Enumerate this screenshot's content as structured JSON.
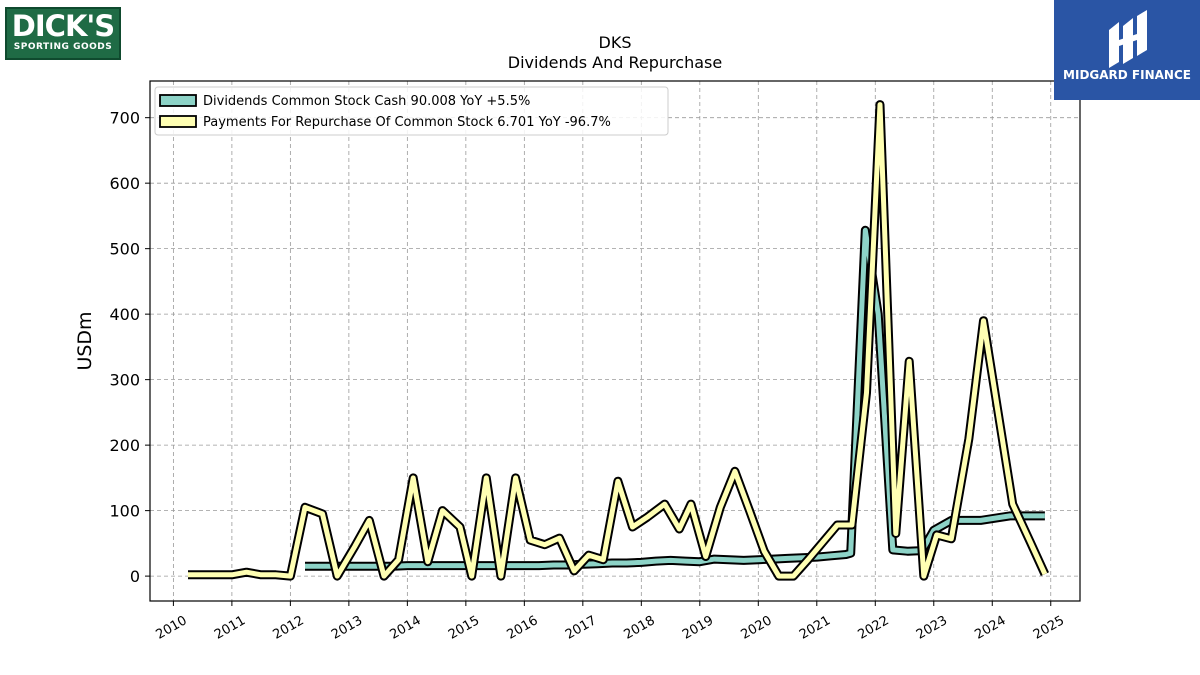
{
  "logos": {
    "left": {
      "line1": "DICK'S",
      "line2": "SPORTING GOODS"
    },
    "right": {
      "name": "MIDGARD FINANCE"
    }
  },
  "chart_data": {
    "type": "line",
    "title": "DKS",
    "subtitle": "Dividends And Repurchase",
    "ylabel": "USDm",
    "xlabel": "",
    "ylim": [
      -38,
      756
    ],
    "xlim": [
      2009.6,
      2025.5
    ],
    "yticks": [
      0,
      100,
      200,
      300,
      400,
      500,
      600,
      700
    ],
    "xticks": [
      2010,
      2011,
      2012,
      2013,
      2014,
      2015,
      2016,
      2017,
      2018,
      2019,
      2020,
      2021,
      2022,
      2023,
      2024,
      2025
    ],
    "grid": true,
    "legend_position": "upper-left",
    "series": [
      {
        "name": "Dividends Common Stock Cash  90.008 YoY +5.5%",
        "color": "#8dd3c7",
        "points": [
          [
            2012.25,
            15
          ],
          [
            2012.5,
            15
          ],
          [
            2012.75,
            15
          ],
          [
            2013.0,
            15
          ],
          [
            2013.25,
            15
          ],
          [
            2013.5,
            15
          ],
          [
            2013.75,
            15
          ],
          [
            2014.0,
            16
          ],
          [
            2014.25,
            16
          ],
          [
            2014.5,
            16
          ],
          [
            2014.75,
            16
          ],
          [
            2015.0,
            16
          ],
          [
            2015.25,
            16
          ],
          [
            2015.5,
            16
          ],
          [
            2015.75,
            16
          ],
          [
            2016.0,
            16
          ],
          [
            2016.25,
            16
          ],
          [
            2016.5,
            17
          ],
          [
            2016.75,
            17
          ],
          [
            2017.0,
            18
          ],
          [
            2017.25,
            19
          ],
          [
            2017.5,
            20
          ],
          [
            2017.75,
            20
          ],
          [
            2018.0,
            21
          ],
          [
            2018.25,
            23
          ],
          [
            2018.5,
            24
          ],
          [
            2018.75,
            23
          ],
          [
            2019.0,
            22
          ],
          [
            2019.25,
            26
          ],
          [
            2019.5,
            25
          ],
          [
            2019.75,
            24
          ],
          [
            2020.0,
            25
          ],
          [
            2020.25,
            26
          ],
          [
            2020.5,
            27
          ],
          [
            2020.75,
            28
          ],
          [
            2021.0,
            29
          ],
          [
            2021.25,
            31
          ],
          [
            2021.5,
            33
          ],
          [
            2021.58,
            35
          ],
          [
            2021.83,
            528
          ],
          [
            2022.05,
            400
          ],
          [
            2022.3,
            40
          ],
          [
            2022.55,
            38
          ],
          [
            2022.8,
            39
          ],
          [
            2023.0,
            70
          ],
          [
            2023.3,
            85
          ],
          [
            2023.8,
            85
          ],
          [
            2024.3,
            92
          ],
          [
            2024.9,
            92
          ]
        ]
      },
      {
        "name": "Payments For Repurchase Of Common Stock  6.701 YoY -96.7%",
        "color": "#ffffb3",
        "points": [
          [
            2010.25,
            2
          ],
          [
            2010.5,
            2
          ],
          [
            2010.75,
            2
          ],
          [
            2011.0,
            2
          ],
          [
            2011.25,
            6
          ],
          [
            2011.5,
            2
          ],
          [
            2011.75,
            2
          ],
          [
            2012.0,
            0
          ],
          [
            2012.25,
            105
          ],
          [
            2012.55,
            95
          ],
          [
            2012.8,
            0
          ],
          [
            2013.1,
            45
          ],
          [
            2013.35,
            85
          ],
          [
            2013.6,
            0
          ],
          [
            2013.85,
            25
          ],
          [
            2014.1,
            150
          ],
          [
            2014.35,
            22
          ],
          [
            2014.6,
            100
          ],
          [
            2014.9,
            75
          ],
          [
            2015.1,
            0
          ],
          [
            2015.35,
            150
          ],
          [
            2015.6,
            0
          ],
          [
            2015.85,
            150
          ],
          [
            2016.1,
            55
          ],
          [
            2016.35,
            48
          ],
          [
            2016.6,
            58
          ],
          [
            2016.85,
            8
          ],
          [
            2017.1,
            32
          ],
          [
            2017.35,
            25
          ],
          [
            2017.6,
            145
          ],
          [
            2017.85,
            75
          ],
          [
            2018.1,
            90
          ],
          [
            2018.4,
            110
          ],
          [
            2018.65,
            72
          ],
          [
            2018.85,
            110
          ],
          [
            2019.1,
            30
          ],
          [
            2019.35,
            105
          ],
          [
            2019.6,
            160
          ],
          [
            2019.85,
            100
          ],
          [
            2020.1,
            38
          ],
          [
            2020.35,
            0
          ],
          [
            2020.6,
            0
          ],
          [
            2020.85,
            25
          ],
          [
            2021.35,
            78
          ],
          [
            2021.6,
            78
          ],
          [
            2021.85,
            280
          ],
          [
            2022.08,
            720
          ],
          [
            2022.35,
            65
          ],
          [
            2022.58,
            328
          ],
          [
            2022.83,
            0
          ],
          [
            2023.05,
            63
          ],
          [
            2023.3,
            57
          ],
          [
            2023.6,
            210
          ],
          [
            2023.85,
            390
          ],
          [
            2024.35,
            110
          ],
          [
            2024.65,
            52
          ],
          [
            2024.9,
            3
          ]
        ]
      }
    ]
  }
}
